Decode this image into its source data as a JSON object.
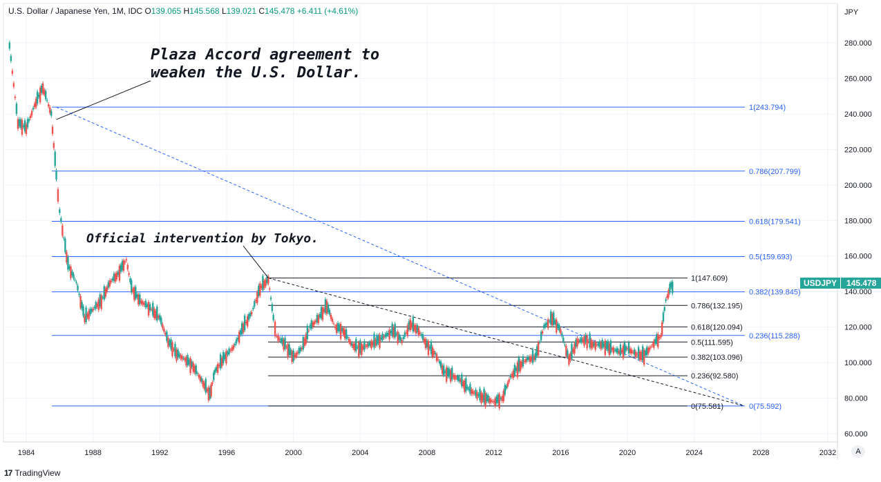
{
  "header": {
    "symbol": "U.S. Dollar / Japanese Yen, 1M, IDC",
    "open_label": "O",
    "open": "139.065",
    "high_label": "H",
    "high": "145.568",
    "low_label": "L",
    "low": "139.021",
    "close_label": "C",
    "close": "145.478",
    "change": "+6.411 (+4.61%)"
  },
  "price_badge": {
    "symbol": "USDJPY",
    "value": "145.478"
  },
  "footer": {
    "brand": "TradingView",
    "logo": "17",
    "auto_label": "A"
  },
  "colors": {
    "up": "#26a69a",
    "down": "#ef5350",
    "fib_blue": "#2962ff",
    "fib_black": "#131722",
    "grid": "#f0f3fa"
  },
  "chart_data": {
    "type": "candlestick",
    "currency_label": "JPY",
    "ylim": [
      55,
      300
    ],
    "xlim": [
      1982.5,
      2032.8
    ],
    "y_ticks": [
      "60.000",
      "80.000",
      "100.000",
      "120.000",
      "140.000",
      "160.000",
      "180.000",
      "200.000",
      "220.000",
      "240.000",
      "260.000",
      "280.000"
    ],
    "x_ticks": [
      "1984",
      "1988",
      "1992",
      "1996",
      "2000",
      "2004",
      "2008",
      "2012",
      "2016",
      "2020",
      "2024",
      "2028",
      "2032"
    ],
    "series": [
      {
        "x": [
          1983.0,
          1983.5,
          1984.0,
          1984.5,
          1985.0,
          1985.5,
          1985.8,
          1986.0,
          1986.5,
          1987.0,
          1987.5,
          1988.0,
          1988.5,
          1989.0,
          1989.5,
          1990.0,
          1990.3,
          1990.8,
          1991.5,
          1992.0,
          1992.5,
          1993.0,
          1993.5,
          1994.0,
          1994.5,
          1995.0,
          1995.3,
          1995.8,
          1996.5,
          1997.0,
          1997.5,
          1998.0,
          1998.5,
          1998.8,
          1999.0,
          1999.5,
          2000.0,
          2000.5,
          2001.0,
          2001.5,
          2002.0,
          2002.5,
          2003.0,
          2003.5,
          2004.0,
          2004.5,
          2005.0,
          2005.5,
          2006.0,
          2006.5,
          2007.0,
          2007.5,
          2008.0,
          2008.5,
          2009.0,
          2009.5,
          2010.0,
          2010.5,
          2011.0,
          2011.5,
          2012.0,
          2012.5,
          2013.0,
          2013.5,
          2014.0,
          2014.5,
          2015.0,
          2015.5,
          2016.0,
          2016.5,
          2017.0,
          2017.5,
          2018.0,
          2018.5,
          2019.0,
          2019.5,
          2020.0,
          2020.5,
          2021.0,
          2021.5,
          2022.0,
          2022.3,
          2022.7
        ],
        "close": [
          278,
          235,
          232,
          245,
          255,
          240,
          205,
          185,
          155,
          145,
          125,
          130,
          135,
          145,
          150,
          158,
          142,
          135,
          130,
          125,
          112,
          105,
          102,
          98,
          90,
          82,
          95,
          102,
          110,
          120,
          128,
          142,
          147,
          125,
          115,
          110,
          103,
          108,
          120,
          125,
          132,
          120,
          118,
          110,
          108,
          110,
          112,
          115,
          118,
          112,
          122,
          118,
          110,
          105,
          95,
          93,
          90,
          85,
          82,
          80,
          78,
          80,
          92,
          98,
          102,
          103,
          120,
          125,
          118,
          102,
          112,
          113,
          110,
          110,
          108,
          106,
          108,
          105,
          104,
          110,
          115,
          135,
          145.478
        ]
      }
    ],
    "fib_blue": [
      {
        "label": "1(243.794)",
        "value": 243.794
      },
      {
        "label": "0.786(207.799)",
        "value": 207.799
      },
      {
        "label": "0.618(179.541)",
        "value": 179.541
      },
      {
        "label": "0.5(159.693)",
        "value": 159.693
      },
      {
        "label": "0.382(139.845)",
        "value": 139.845
      },
      {
        "label": "0.236(115.288)",
        "value": 115.288
      },
      {
        "label": "0(75.592)",
        "value": 75.592
      }
    ],
    "fib_black": [
      {
        "label": "1(147.609)",
        "value": 147.609
      },
      {
        "label": "0.786(132.195)",
        "value": 132.195
      },
      {
        "label": "0.618(120.094)",
        "value": 120.094
      },
      {
        "label": "0.5(111.595)",
        "value": 111.595
      },
      {
        "label": "0.382(103.096)",
        "value": 103.096
      },
      {
        "label": "0.236(92.580)",
        "value": 92.58
      },
      {
        "label": "0(75.581)",
        "value": 75.581
      }
    ],
    "trendlines": [
      {
        "x1": 1985.8,
        "y1": 243.794,
        "x2": 2027.0,
        "y2": 75.592,
        "color": "#2962ff"
      },
      {
        "x1": 1998.5,
        "y1": 147.609,
        "x2": 2027.0,
        "y2": 75.581,
        "color": "#131722"
      }
    ],
    "annotations": [
      {
        "text": "Plaza Accord agreement to weaken the U.S. Dollar.",
        "lines": [
          "Plaza Accord agreement to",
          "weaken the U.S. Dollar."
        ],
        "point_x": 1985.8,
        "point_y": 238
      },
      {
        "text": "Official intervention by Tokyo.",
        "lines": [
          "Official intervention by Tokyo."
        ],
        "point_x": 1998.5,
        "point_y": 147.609
      }
    ]
  }
}
